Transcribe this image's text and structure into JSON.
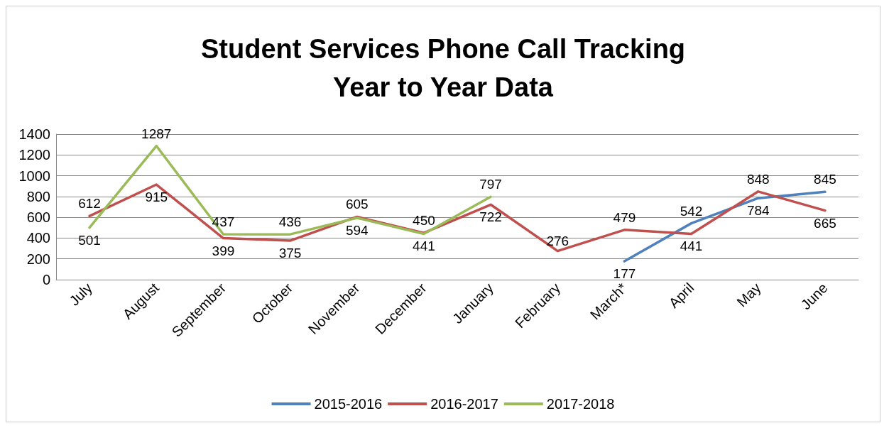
{
  "chart_data": {
    "type": "line",
    "title": "Student Services Phone Call Tracking\nYear to Year Data",
    "categories": [
      "July",
      "August",
      "September",
      "October",
      "November",
      "December",
      "January",
      "February",
      "March*",
      "April",
      "May",
      "June"
    ],
    "series": [
      {
        "name": "2015-2016",
        "color": "#4f81bd",
        "values": [
          null,
          null,
          null,
          null,
          null,
          null,
          null,
          null,
          177,
          542,
          784,
          845
        ]
      },
      {
        "name": "2016-2017",
        "color": "#c0504d",
        "values": [
          612,
          915,
          399,
          375,
          605,
          450,
          722,
          276,
          479,
          441,
          848,
          665
        ]
      },
      {
        "name": "2017-2018",
        "color": "#9bbb59",
        "values": [
          501,
          1287,
          437,
          436,
          594,
          441,
          797,
          null,
          null,
          null,
          null,
          null
        ]
      }
    ],
    "ylim": [
      0,
      1400
    ],
    "yticks": [
      0,
      200,
      400,
      600,
      800,
      1000,
      1200,
      1400
    ],
    "grid": "y",
    "legend": "bottom",
    "data_labels": true,
    "marker": "none",
    "line_style": "solid"
  }
}
